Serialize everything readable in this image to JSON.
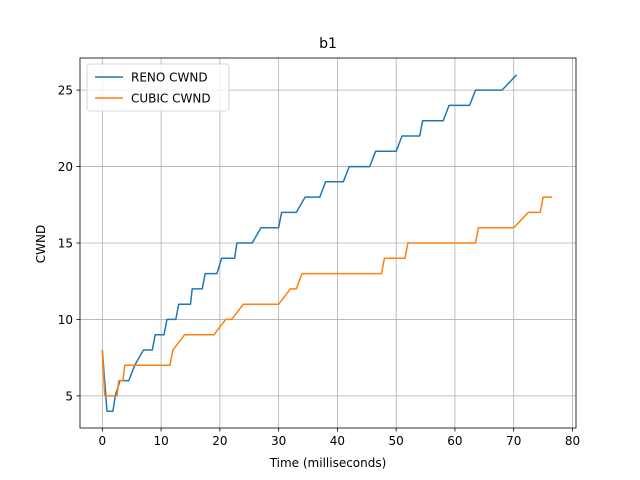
{
  "chart_data": {
    "type": "line",
    "title": "b1",
    "xlabel": "Time (milliseconds)",
    "ylabel": "CWND",
    "xlim": [
      -3.8,
      80.6
    ],
    "ylim": [
      2.9,
      27.1
    ],
    "xticks": [
      0,
      10,
      20,
      30,
      40,
      50,
      60,
      70,
      80
    ],
    "yticks": [
      5,
      10,
      15,
      20,
      25
    ],
    "grid": true,
    "legend_position": "top-left",
    "series": [
      {
        "name": "RENO CWND",
        "color": "#1f77b4",
        "x": [
          0,
          0.8,
          1.0,
          1.8,
          2.2,
          3.0,
          3.4,
          4.5,
          5.5,
          7.0,
          8.5,
          9.0,
          10.5,
          11.0,
          12.5,
          13.0,
          15.0,
          15.3,
          17.0,
          17.5,
          19.5,
          20.3,
          22.5,
          22.9,
          25.5,
          27.0,
          30.0,
          30.5,
          33.0,
          34.5,
          37.0,
          38.0,
          41.0,
          42.0,
          45.5,
          46.5,
          50.0,
          51.0,
          54.0,
          54.5,
          58.0,
          59.0,
          62.5,
          63.5,
          68.0,
          70.5
        ],
        "y": [
          8,
          4,
          4,
          4,
          5,
          6,
          6,
          6,
          7,
          8,
          8,
          9,
          9,
          10,
          10,
          11,
          11,
          12,
          12,
          13,
          13,
          14,
          14,
          15,
          15,
          16,
          16,
          17,
          17,
          18,
          18,
          19,
          19,
          20,
          20,
          21,
          21,
          22,
          22,
          23,
          23,
          24,
          24,
          25,
          25,
          26
        ]
      },
      {
        "name": "CUBIC CWND",
        "color": "#ff7f0e",
        "x": [
          0,
          0.4,
          1.5,
          2.5,
          2.8,
          3.0,
          3.5,
          3.8,
          5.0,
          8.0,
          11.5,
          12.0,
          13.0,
          14.0,
          16.0,
          19.0,
          21.0,
          22.0,
          24.0,
          30.0,
          32.0,
          33.0,
          34.0,
          47.5,
          48.0,
          51.5,
          52.0,
          63.5,
          64.0,
          70.0,
          72.5,
          74.5,
          75.0,
          76.5
        ],
        "y": [
          8,
          5,
          5,
          5,
          6,
          6,
          6,
          7,
          7,
          7,
          7,
          8,
          8.5,
          9,
          9,
          9,
          10,
          10,
          11,
          11,
          12,
          12,
          13,
          13,
          14,
          14,
          15,
          15,
          16,
          16,
          17,
          17,
          18,
          18
        ]
      }
    ]
  }
}
